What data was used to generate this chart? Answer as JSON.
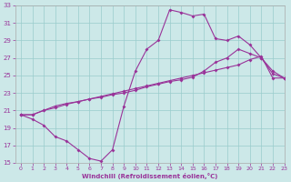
{
  "xlabel": "Windchill (Refroidissement éolien,°C)",
  "background_color": "#cce8e8",
  "grid_color": "#99cccc",
  "line_color": "#993399",
  "ylim": [
    15,
    33
  ],
  "xlim": [
    -0.5,
    23
  ],
  "yticks": [
    15,
    17,
    19,
    21,
    23,
    25,
    27,
    29,
    31,
    33
  ],
  "xticks": [
    0,
    1,
    2,
    3,
    4,
    5,
    6,
    7,
    8,
    9,
    10,
    11,
    12,
    13,
    14,
    15,
    16,
    17,
    18,
    19,
    20,
    21,
    22,
    23
  ],
  "line1_x": [
    0,
    1,
    2,
    3,
    4,
    5,
    6,
    7,
    8,
    9,
    10,
    11,
    12,
    13,
    14,
    15,
    16,
    17,
    18,
    19,
    20,
    21,
    22,
    23
  ],
  "line1_y": [
    20.5,
    20.0,
    19.3,
    18.0,
    17.5,
    16.5,
    15.5,
    15.2,
    16.5,
    21.5,
    25.5,
    28.0,
    29.0,
    32.5,
    32.2,
    31.8,
    32.0,
    29.2,
    29.0,
    29.5,
    28.5,
    27.0,
    25.2,
    24.7
  ],
  "line2_x": [
    0,
    1,
    2,
    3,
    4,
    5,
    6,
    7,
    8,
    9,
    10,
    11,
    12,
    13,
    14,
    15,
    16,
    17,
    18,
    19,
    20,
    21,
    22,
    23
  ],
  "line2_y": [
    20.5,
    20.5,
    21.0,
    21.5,
    21.8,
    22.0,
    22.3,
    22.5,
    22.8,
    23.0,
    23.3,
    23.7,
    24.0,
    24.3,
    24.5,
    24.8,
    25.5,
    26.5,
    27.0,
    28.0,
    27.5,
    27.0,
    25.5,
    24.7
  ],
  "line3_x": [
    0,
    1,
    2,
    3,
    4,
    5,
    6,
    7,
    8,
    9,
    10,
    11,
    12,
    13,
    14,
    15,
    16,
    17,
    18,
    19,
    20,
    21,
    22,
    23
  ],
  "line3_y": [
    20.5,
    20.5,
    21.0,
    21.3,
    21.7,
    22.0,
    22.3,
    22.6,
    22.9,
    23.2,
    23.5,
    23.8,
    24.1,
    24.4,
    24.7,
    25.0,
    25.3,
    25.6,
    25.9,
    26.2,
    26.8,
    27.2,
    24.7,
    24.7
  ]
}
